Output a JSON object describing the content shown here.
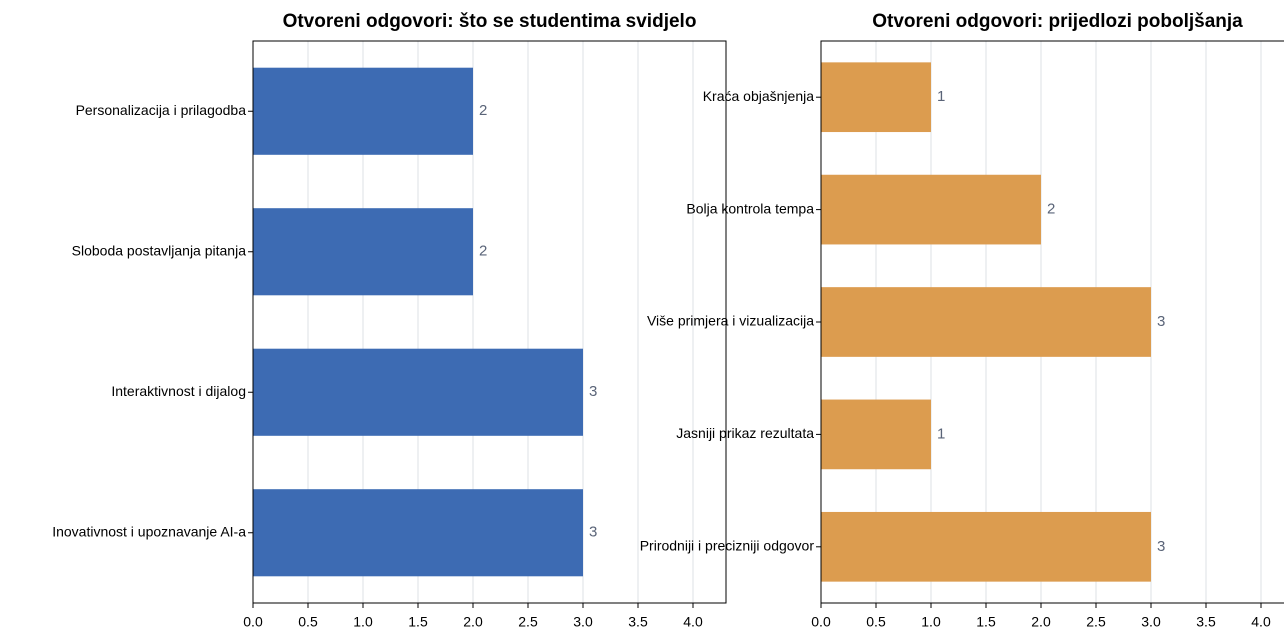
{
  "chart_data": [
    {
      "type": "barh",
      "title": "Otvoreni odgovori: što se studentima svidjelo",
      "categories": [
        "Personalizacija i prilagodba",
        "Sloboda postavljanja pitanja",
        "Interaktivnost i dijalog",
        "Inovativnost i upoznavanje AI-a"
      ],
      "values": [
        2,
        2,
        3,
        3
      ],
      "color": "#3d6bb3",
      "xlim": [
        0,
        4.3
      ],
      "xticks": [
        {
          "value": 0,
          "label": "0.0"
        },
        0.5,
        {
          "value": 1,
          "label": "1.0"
        },
        1.5,
        {
          "value": 2,
          "label": "2.0"
        },
        2.5,
        {
          "value": 3,
          "label": "3.0"
        },
        3.5,
        {
          "value": 4,
          "label": "4.0"
        }
      ],
      "grid": true
    },
    {
      "type": "barh",
      "title": "Otvoreni odgovori: prijedlozi poboljšanja",
      "categories": [
        "Kraća objašnjenja",
        "Bolja kontrola tempa",
        "Više primjera i vizualizacija",
        "Jasniji prikaz rezultata",
        "Prirodniji i precizniji odgovor"
      ],
      "values": [
        1,
        2,
        3,
        1,
        3
      ],
      "color": "#dc9c4f",
      "xlim": [
        0,
        4.3
      ],
      "xticks": [
        {
          "value": 0,
          "label": "0.0"
        },
        0.5,
        {
          "value": 1,
          "label": "1.0"
        },
        1.5,
        {
          "value": 2,
          "label": "2.0"
        },
        2.5,
        {
          "value": 3,
          "label": "3.0"
        },
        3.5,
        {
          "value": 4,
          "label": "4.0"
        }
      ],
      "grid": true
    }
  ]
}
